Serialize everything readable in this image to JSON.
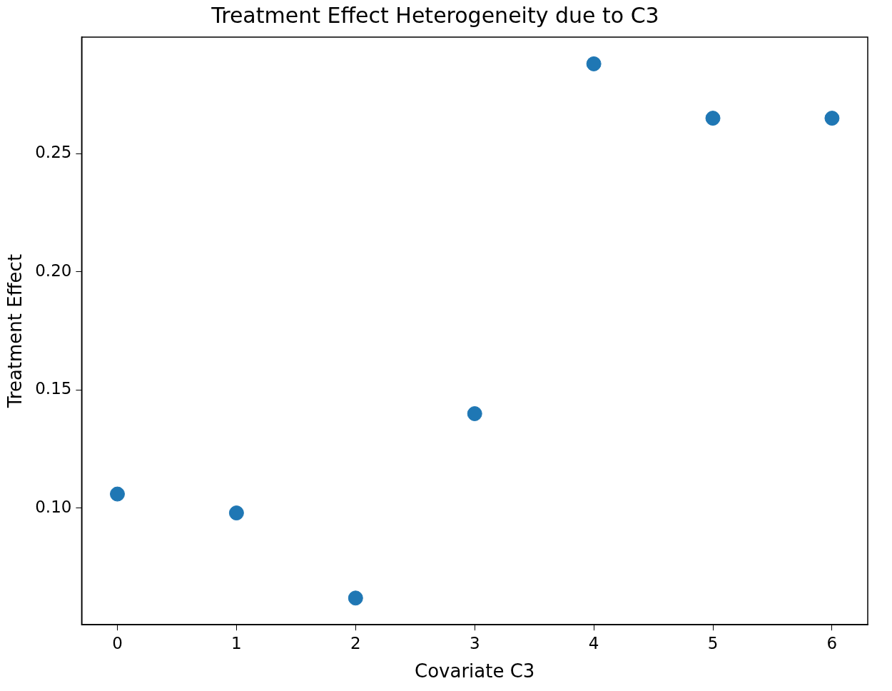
{
  "chart_data": {
    "type": "scatter",
    "title": "Treatment Effect Heterogeneity due to C3",
    "x_label": "Covariate C3",
    "y_label": "Treatment Effect",
    "x": [
      0,
      1,
      2,
      3,
      4,
      5,
      6
    ],
    "values": [
      0.106,
      0.098,
      0.062,
      0.14,
      0.288,
      0.265,
      0.265
    ],
    "color": "#1f77b4",
    "marker": "circle",
    "xlim": [
      -0.3,
      6.3
    ],
    "xticks": [
      0,
      1,
      2,
      3,
      4,
      5,
      6
    ],
    "ylim": [
      0.0507,
      0.2993
    ],
    "yticks": [
      {
        "value": 0.1,
        "label": "0.10"
      },
      0.15,
      {
        "value": 0.2,
        "label": "0.20"
      },
      0.25
    ],
    "grid": false
  }
}
